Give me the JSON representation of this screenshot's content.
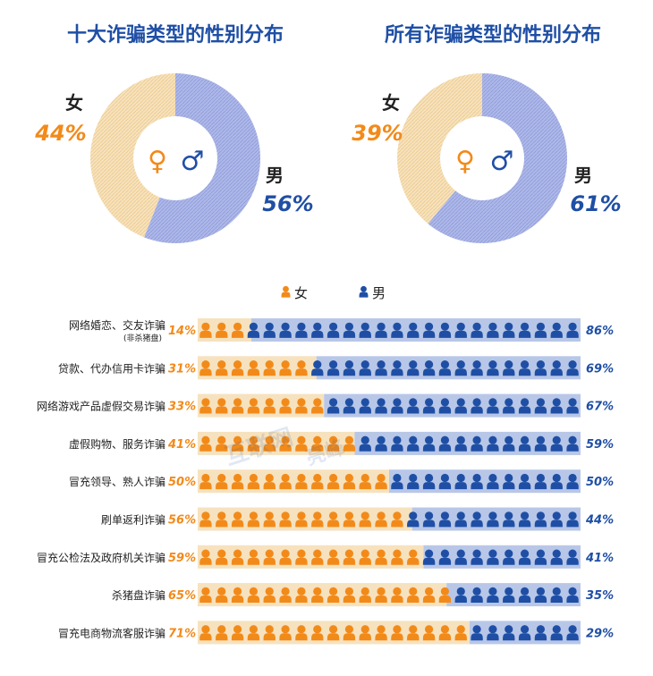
{
  "colors": {
    "female": "#F28A1A",
    "female_light": "#F6E2BE",
    "male": "#1F4FA5",
    "male_light": "#B8C7E8",
    "title": "#1F4FA5",
    "female_text": "#F28A1A",
    "male_text": "#1F4FA5",
    "label": "#222222"
  },
  "icons": {
    "female_symbol": "♀",
    "male_symbol": "♂",
    "person": "person-icon"
  },
  "watermark": {
    "line1": "互联网",
    "line2": "亮峰"
  },
  "chart_data": [
    {
      "type": "pie",
      "title": "十大诈骗类型的性别分布",
      "slices": [
        {
          "name": "女",
          "value": 44,
          "label": "44%"
        },
        {
          "name": "男",
          "value": 56,
          "label": "56%"
        }
      ]
    },
    {
      "type": "pie",
      "title": "所有诈骗类型的性别分布",
      "slices": [
        {
          "name": "女",
          "value": 39,
          "label": "39%"
        },
        {
          "name": "男",
          "value": 61,
          "label": "61%"
        }
      ]
    },
    {
      "type": "bar",
      "legend": [
        {
          "name": "女"
        },
        {
          "name": "男"
        }
      ],
      "categories": [
        "网络婚恋、交友诈骗",
        "贷款、代办信用卡诈骗",
        "网络游戏产品虚假交易诈骗",
        "虚假购物、服务诈骗",
        "冒充领导、熟人诈骗",
        "刷单返利诈骗",
        "冒充公检法及政府机关诈骗",
        "杀猪盘诈骗",
        "冒充电商物流客服诈骗"
      ],
      "sublabels": [
        "(非杀猪盘)",
        "",
        "",
        "",
        "",
        "",
        "",
        "",
        ""
      ],
      "series": [
        {
          "name": "女",
          "values": [
            14,
            31,
            33,
            41,
            50,
            56,
            59,
            65,
            71
          ],
          "labels": [
            "14%",
            "31%",
            "33%",
            "41%",
            "50%",
            "56%",
            "59%",
            "65%",
            "71%"
          ]
        },
        {
          "name": "男",
          "values": [
            86,
            69,
            67,
            59,
            50,
            44,
            41,
            35,
            29
          ],
          "labels": [
            "86%",
            "69%",
            "67%",
            "59%",
            "50%",
            "44%",
            "41%",
            "35%",
            "29%"
          ]
        }
      ],
      "xlim": [
        0,
        100
      ]
    }
  ]
}
